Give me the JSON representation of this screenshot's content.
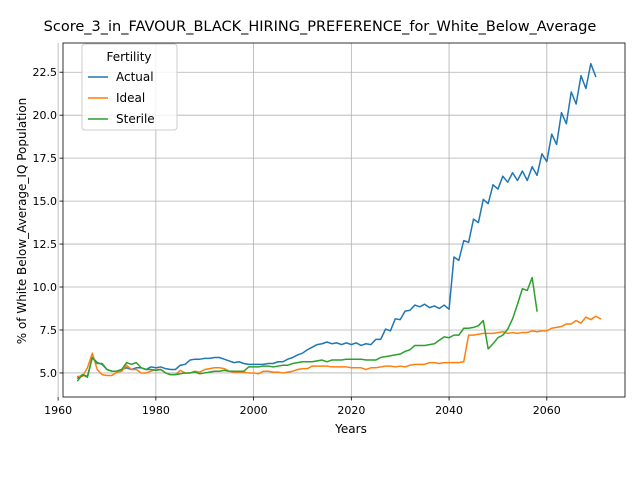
{
  "chart_data": {
    "type": "line",
    "title": "Score_3_in_FAVOUR_BLACK_HIRING_PREFERENCE_for_White_Below_Average",
    "xlabel": "Years",
    "ylabel": "% of White Below_Average_IQ Population",
    "xlim": [
      1961,
      2076
    ],
    "ylim": [
      3.6,
      24.2
    ],
    "xticks": [
      1960,
      1980,
      2000,
      2020,
      2040,
      2060
    ],
    "yticks": [
      5.0,
      7.5,
      10.0,
      12.5,
      15.0,
      17.5,
      20.0,
      22.5
    ],
    "ytick_labels": [
      "5.0",
      "7.5",
      "10.0",
      "12.5",
      "15.0",
      "17.5",
      "20.0",
      "22.5"
    ],
    "grid": true,
    "legend": {
      "title": "Fertility",
      "placement": "top-left"
    },
    "series": [
      {
        "name": "Actual",
        "color": "#1f77b4",
        "points": [
          [
            1964,
            4.7
          ],
          [
            1965,
            4.9
          ],
          [
            1966,
            4.8
          ],
          [
            1967,
            5.9
          ],
          [
            1968,
            5.6
          ],
          [
            1969,
            5.5
          ],
          [
            1970,
            5.2
          ],
          [
            1971,
            5.1
          ],
          [
            1972,
            5.1
          ],
          [
            1973,
            5.2
          ],
          [
            1974,
            5.3
          ],
          [
            1975,
            5.2
          ],
          [
            1976,
            5.3
          ],
          [
            1977,
            5.3
          ],
          [
            1978,
            5.2
          ],
          [
            1979,
            5.35
          ],
          [
            1980,
            5.3
          ],
          [
            1981,
            5.35
          ],
          [
            1982,
            5.25
          ],
          [
            1983,
            5.2
          ],
          [
            1984,
            5.2
          ],
          [
            1985,
            5.45
          ],
          [
            1986,
            5.5
          ],
          [
            1987,
            5.75
          ],
          [
            1988,
            5.8
          ],
          [
            1989,
            5.8
          ],
          [
            1990,
            5.85
          ],
          [
            1991,
            5.85
          ],
          [
            1992,
            5.9
          ],
          [
            1993,
            5.9
          ],
          [
            1994,
            5.8
          ],
          [
            1995,
            5.7
          ],
          [
            1996,
            5.6
          ],
          [
            1997,
            5.65
          ],
          [
            1998,
            5.55
          ],
          [
            1999,
            5.5
          ],
          [
            2000,
            5.5
          ],
          [
            2001,
            5.5
          ],
          [
            2002,
            5.5
          ],
          [
            2003,
            5.55
          ],
          [
            2004,
            5.55
          ],
          [
            2005,
            5.65
          ],
          [
            2006,
            5.65
          ],
          [
            2007,
            5.8
          ],
          [
            2008,
            5.9
          ],
          [
            2009,
            6.05
          ],
          [
            2010,
            6.15
          ],
          [
            2011,
            6.35
          ],
          [
            2012,
            6.5
          ],
          [
            2013,
            6.65
          ],
          [
            2014,
            6.7
          ],
          [
            2015,
            6.8
          ],
          [
            2016,
            6.7
          ],
          [
            2017,
            6.75
          ],
          [
            2018,
            6.65
          ],
          [
            2019,
            6.75
          ],
          [
            2020,
            6.65
          ],
          [
            2021,
            6.75
          ],
          [
            2022,
            6.6
          ],
          [
            2023,
            6.7
          ],
          [
            2024,
            6.65
          ],
          [
            2025,
            6.95
          ],
          [
            2026,
            6.95
          ],
          [
            2027,
            7.55
          ],
          [
            2028,
            7.45
          ],
          [
            2029,
            8.15
          ],
          [
            2030,
            8.1
          ],
          [
            2031,
            8.6
          ],
          [
            2032,
            8.65
          ],
          [
            2033,
            8.95
          ],
          [
            2034,
            8.85
          ],
          [
            2035,
            9.0
          ],
          [
            2036,
            8.8
          ],
          [
            2037,
            8.9
          ],
          [
            2038,
            8.75
          ],
          [
            2039,
            8.95
          ],
          [
            2040,
            8.7
          ],
          [
            2041,
            11.75
          ],
          [
            2042,
            11.55
          ],
          [
            2043,
            12.7
          ],
          [
            2044,
            12.6
          ],
          [
            2045,
            13.95
          ],
          [
            2046,
            13.75
          ],
          [
            2047,
            15.1
          ],
          [
            2048,
            14.85
          ],
          [
            2049,
            15.95
          ],
          [
            2050,
            15.7
          ],
          [
            2051,
            16.45
          ],
          [
            2052,
            16.1
          ],
          [
            2053,
            16.65
          ],
          [
            2054,
            16.2
          ],
          [
            2055,
            16.75
          ],
          [
            2056,
            16.2
          ],
          [
            2057,
            17.0
          ],
          [
            2058,
            16.5
          ],
          [
            2059,
            17.75
          ],
          [
            2060,
            17.3
          ],
          [
            2061,
            18.9
          ],
          [
            2062,
            18.3
          ],
          [
            2063,
            20.15
          ],
          [
            2064,
            19.5
          ],
          [
            2065,
            21.35
          ],
          [
            2066,
            20.65
          ],
          [
            2067,
            22.3
          ],
          [
            2068,
            21.55
          ],
          [
            2069,
            23.0
          ],
          [
            2070,
            22.25
          ]
        ]
      },
      {
        "name": "Ideal",
        "color": "#ff7f0e",
        "points": [
          [
            1964,
            4.8
          ],
          [
            1965,
            4.8
          ],
          [
            1966,
            5.3
          ],
          [
            1967,
            6.15
          ],
          [
            1968,
            5.2
          ],
          [
            1969,
            4.9
          ],
          [
            1970,
            4.85
          ],
          [
            1971,
            4.85
          ],
          [
            1972,
            5.05
          ],
          [
            1973,
            5.1
          ],
          [
            1974,
            5.45
          ],
          [
            1975,
            5.2
          ],
          [
            1976,
            5.2
          ],
          [
            1977,
            5.0
          ],
          [
            1978,
            5.0
          ],
          [
            1979,
            5.1
          ],
          [
            1980,
            5.2
          ],
          [
            1981,
            5.2
          ],
          [
            1982,
            5.0
          ],
          [
            1983,
            4.9
          ],
          [
            1984,
            4.9
          ],
          [
            1985,
            5.15
          ],
          [
            1986,
            5.0
          ],
          [
            1987,
            5.0
          ],
          [
            1988,
            5.1
          ],
          [
            1989,
            5.05
          ],
          [
            1990,
            5.2
          ],
          [
            1991,
            5.25
          ],
          [
            1992,
            5.3
          ],
          [
            1993,
            5.3
          ],
          [
            1994,
            5.25
          ],
          [
            1995,
            5.1
          ],
          [
            1996,
            5.05
          ],
          [
            1997,
            5.05
          ],
          [
            1998,
            5.05
          ],
          [
            1999,
            5.0
          ],
          [
            2000,
            5.0
          ],
          [
            2001,
            4.95
          ],
          [
            2002,
            5.1
          ],
          [
            2003,
            5.1
          ],
          [
            2004,
            5.05
          ],
          [
            2005,
            5.05
          ],
          [
            2006,
            5.0
          ],
          [
            2007,
            5.05
          ],
          [
            2008,
            5.1
          ],
          [
            2009,
            5.2
          ],
          [
            2010,
            5.25
          ],
          [
            2011,
            5.25
          ],
          [
            2012,
            5.4
          ],
          [
            2013,
            5.4
          ],
          [
            2014,
            5.4
          ],
          [
            2015,
            5.4
          ],
          [
            2016,
            5.35
          ],
          [
            2017,
            5.35
          ],
          [
            2018,
            5.35
          ],
          [
            2019,
            5.35
          ],
          [
            2020,
            5.3
          ],
          [
            2021,
            5.3
          ],
          [
            2022,
            5.3
          ],
          [
            2023,
            5.2
          ],
          [
            2024,
            5.3
          ],
          [
            2025,
            5.3
          ],
          [
            2026,
            5.35
          ],
          [
            2027,
            5.4
          ],
          [
            2028,
            5.4
          ],
          [
            2029,
            5.35
          ],
          [
            2030,
            5.4
          ],
          [
            2031,
            5.35
          ],
          [
            2032,
            5.45
          ],
          [
            2033,
            5.5
          ],
          [
            2034,
            5.5
          ],
          [
            2035,
            5.5
          ],
          [
            2036,
            5.6
          ],
          [
            2037,
            5.6
          ],
          [
            2038,
            5.55
          ],
          [
            2039,
            5.6
          ],
          [
            2040,
            5.6
          ],
          [
            2041,
            5.6
          ],
          [
            2042,
            5.6
          ],
          [
            2043,
            5.65
          ],
          [
            2044,
            7.2
          ],
          [
            2045,
            7.2
          ],
          [
            2046,
            7.25
          ],
          [
            2047,
            7.3
          ],
          [
            2048,
            7.3
          ],
          [
            2049,
            7.3
          ],
          [
            2050,
            7.35
          ],
          [
            2051,
            7.4
          ],
          [
            2052,
            7.3
          ],
          [
            2053,
            7.35
          ],
          [
            2054,
            7.3
          ],
          [
            2055,
            7.35
          ],
          [
            2056,
            7.35
          ],
          [
            2057,
            7.45
          ],
          [
            2058,
            7.4
          ],
          [
            2059,
            7.45
          ],
          [
            2060,
            7.45
          ],
          [
            2061,
            7.6
          ],
          [
            2062,
            7.65
          ],
          [
            2063,
            7.7
          ],
          [
            2064,
            7.85
          ],
          [
            2065,
            7.85
          ],
          [
            2066,
            8.05
          ],
          [
            2067,
            7.9
          ],
          [
            2068,
            8.25
          ],
          [
            2069,
            8.1
          ],
          [
            2070,
            8.3
          ],
          [
            2071,
            8.15
          ]
        ]
      },
      {
        "name": "Sterile",
        "color": "#2ca02c",
        "points": [
          [
            1964,
            4.55
          ],
          [
            1965,
            4.9
          ],
          [
            1966,
            4.75
          ],
          [
            1967,
            5.9
          ],
          [
            1968,
            5.55
          ],
          [
            1969,
            5.55
          ],
          [
            1970,
            5.2
          ],
          [
            1971,
            5.1
          ],
          [
            1972,
            5.1
          ],
          [
            1973,
            5.2
          ],
          [
            1974,
            5.6
          ],
          [
            1975,
            5.5
          ],
          [
            1976,
            5.6
          ],
          [
            1977,
            5.3
          ],
          [
            1978,
            5.2
          ],
          [
            1979,
            5.2
          ],
          [
            1980,
            5.15
          ],
          [
            1981,
            5.2
          ],
          [
            1982,
            5.0
          ],
          [
            1983,
            4.9
          ],
          [
            1984,
            4.9
          ],
          [
            1985,
            4.95
          ],
          [
            1986,
            5.0
          ],
          [
            1987,
            5.0
          ],
          [
            1988,
            5.05
          ],
          [
            1989,
            4.95
          ],
          [
            1990,
            5.0
          ],
          [
            1991,
            5.05
          ],
          [
            1992,
            5.1
          ],
          [
            1993,
            5.1
          ],
          [
            1994,
            5.15
          ],
          [
            1995,
            5.1
          ],
          [
            1996,
            5.1
          ],
          [
            1997,
            5.1
          ],
          [
            1998,
            5.1
          ],
          [
            1999,
            5.35
          ],
          [
            2000,
            5.35
          ],
          [
            2001,
            5.35
          ],
          [
            2002,
            5.4
          ],
          [
            2003,
            5.4
          ],
          [
            2004,
            5.35
          ],
          [
            2005,
            5.4
          ],
          [
            2006,
            5.45
          ],
          [
            2007,
            5.45
          ],
          [
            2008,
            5.55
          ],
          [
            2009,
            5.6
          ],
          [
            2010,
            5.65
          ],
          [
            2011,
            5.65
          ],
          [
            2012,
            5.65
          ],
          [
            2013,
            5.7
          ],
          [
            2014,
            5.75
          ],
          [
            2015,
            5.65
          ],
          [
            2016,
            5.75
          ],
          [
            2017,
            5.75
          ],
          [
            2018,
            5.75
          ],
          [
            2019,
            5.8
          ],
          [
            2020,
            5.8
          ],
          [
            2021,
            5.8
          ],
          [
            2022,
            5.8
          ],
          [
            2023,
            5.75
          ],
          [
            2024,
            5.75
          ],
          [
            2025,
            5.75
          ],
          [
            2026,
            5.9
          ],
          [
            2027,
            5.95
          ],
          [
            2028,
            6.0
          ],
          [
            2029,
            6.05
          ],
          [
            2030,
            6.1
          ],
          [
            2031,
            6.25
          ],
          [
            2032,
            6.35
          ],
          [
            2033,
            6.6
          ],
          [
            2034,
            6.6
          ],
          [
            2035,
            6.6
          ],
          [
            2036,
            6.65
          ],
          [
            2037,
            6.7
          ],
          [
            2038,
            6.9
          ],
          [
            2039,
            7.1
          ],
          [
            2040,
            7.05
          ],
          [
            2041,
            7.2
          ],
          [
            2042,
            7.2
          ],
          [
            2043,
            7.6
          ],
          [
            2044,
            7.6
          ],
          [
            2045,
            7.65
          ],
          [
            2046,
            7.75
          ],
          [
            2047,
            8.05
          ],
          [
            2048,
            6.4
          ],
          [
            2049,
            6.7
          ],
          [
            2050,
            7.05
          ],
          [
            2051,
            7.2
          ],
          [
            2052,
            7.55
          ],
          [
            2053,
            8.15
          ],
          [
            2054,
            9.0
          ],
          [
            2055,
            9.9
          ],
          [
            2056,
            9.8
          ],
          [
            2057,
            10.55
          ],
          [
            2058,
            8.6
          ]
        ]
      }
    ]
  }
}
